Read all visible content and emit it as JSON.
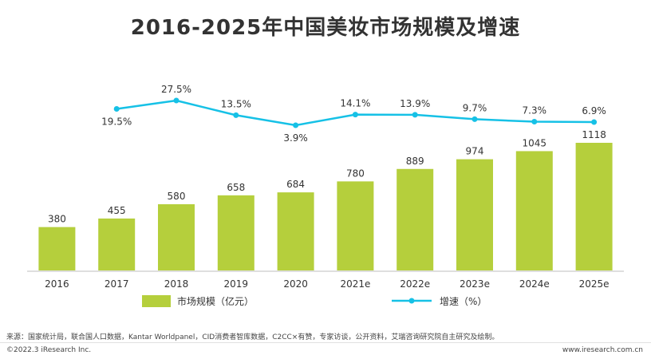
{
  "colors": {
    "bar": "#b5cf3c",
    "line": "#16c1e6",
    "axis": "#bfbfbf",
    "text": "#333333"
  },
  "chart_data": {
    "type": "bar+line",
    "title": "2016-2025年中国美妆市场规模及增速",
    "categories": [
      "2016",
      "2017",
      "2018",
      "2019",
      "2020",
      "2021e",
      "2022e",
      "2023e",
      "2024e",
      "2025e"
    ],
    "series": [
      {
        "name": "市场规模（亿元）",
        "type": "bar",
        "values": [
          380,
          455,
          580,
          658,
          684,
          780,
          889,
          974,
          1045,
          1118
        ],
        "labels": [
          "380",
          "455",
          "580",
          "658",
          "684",
          "780",
          "889",
          "974",
          "1045",
          "1118"
        ]
      },
      {
        "name": "增速（%）",
        "type": "line",
        "axis": "secondary",
        "points": [
          {
            "category": "2017",
            "value": 19.5,
            "label": "19.5%"
          },
          {
            "category": "2018",
            "value": 27.5,
            "label": "27.5%"
          },
          {
            "category": "2019",
            "value": 13.5,
            "label": "13.5%"
          },
          {
            "category": "2020",
            "value": 3.9,
            "label": "3.9%"
          },
          {
            "category": "2021e",
            "value": 14.1,
            "label": "14.1%"
          },
          {
            "category": "2022e",
            "value": 13.9,
            "label": "13.9%"
          },
          {
            "category": "2023e",
            "value": 9.7,
            "label": "9.7%"
          },
          {
            "category": "2024e",
            "value": 7.3,
            "label": "7.3%"
          },
          {
            "category": "2025e",
            "value": 6.9,
            "label": "6.9%"
          }
        ]
      }
    ],
    "legend": {
      "bar": "市场规模（亿元）",
      "line": "增速（%）",
      "placement": "bottom"
    },
    "grid": false
  },
  "footer": {
    "source": "来源：国家统计局，联合国人口数据，Kantar Worldpanel，CID消费者智库数据，C2CC×有赞，专家访谈，公开资料，艾瑞咨询研究院自主研究及绘制。",
    "copyright": "©2022.3 iResearch Inc.",
    "url": "www.iresearch.com.cn"
  }
}
